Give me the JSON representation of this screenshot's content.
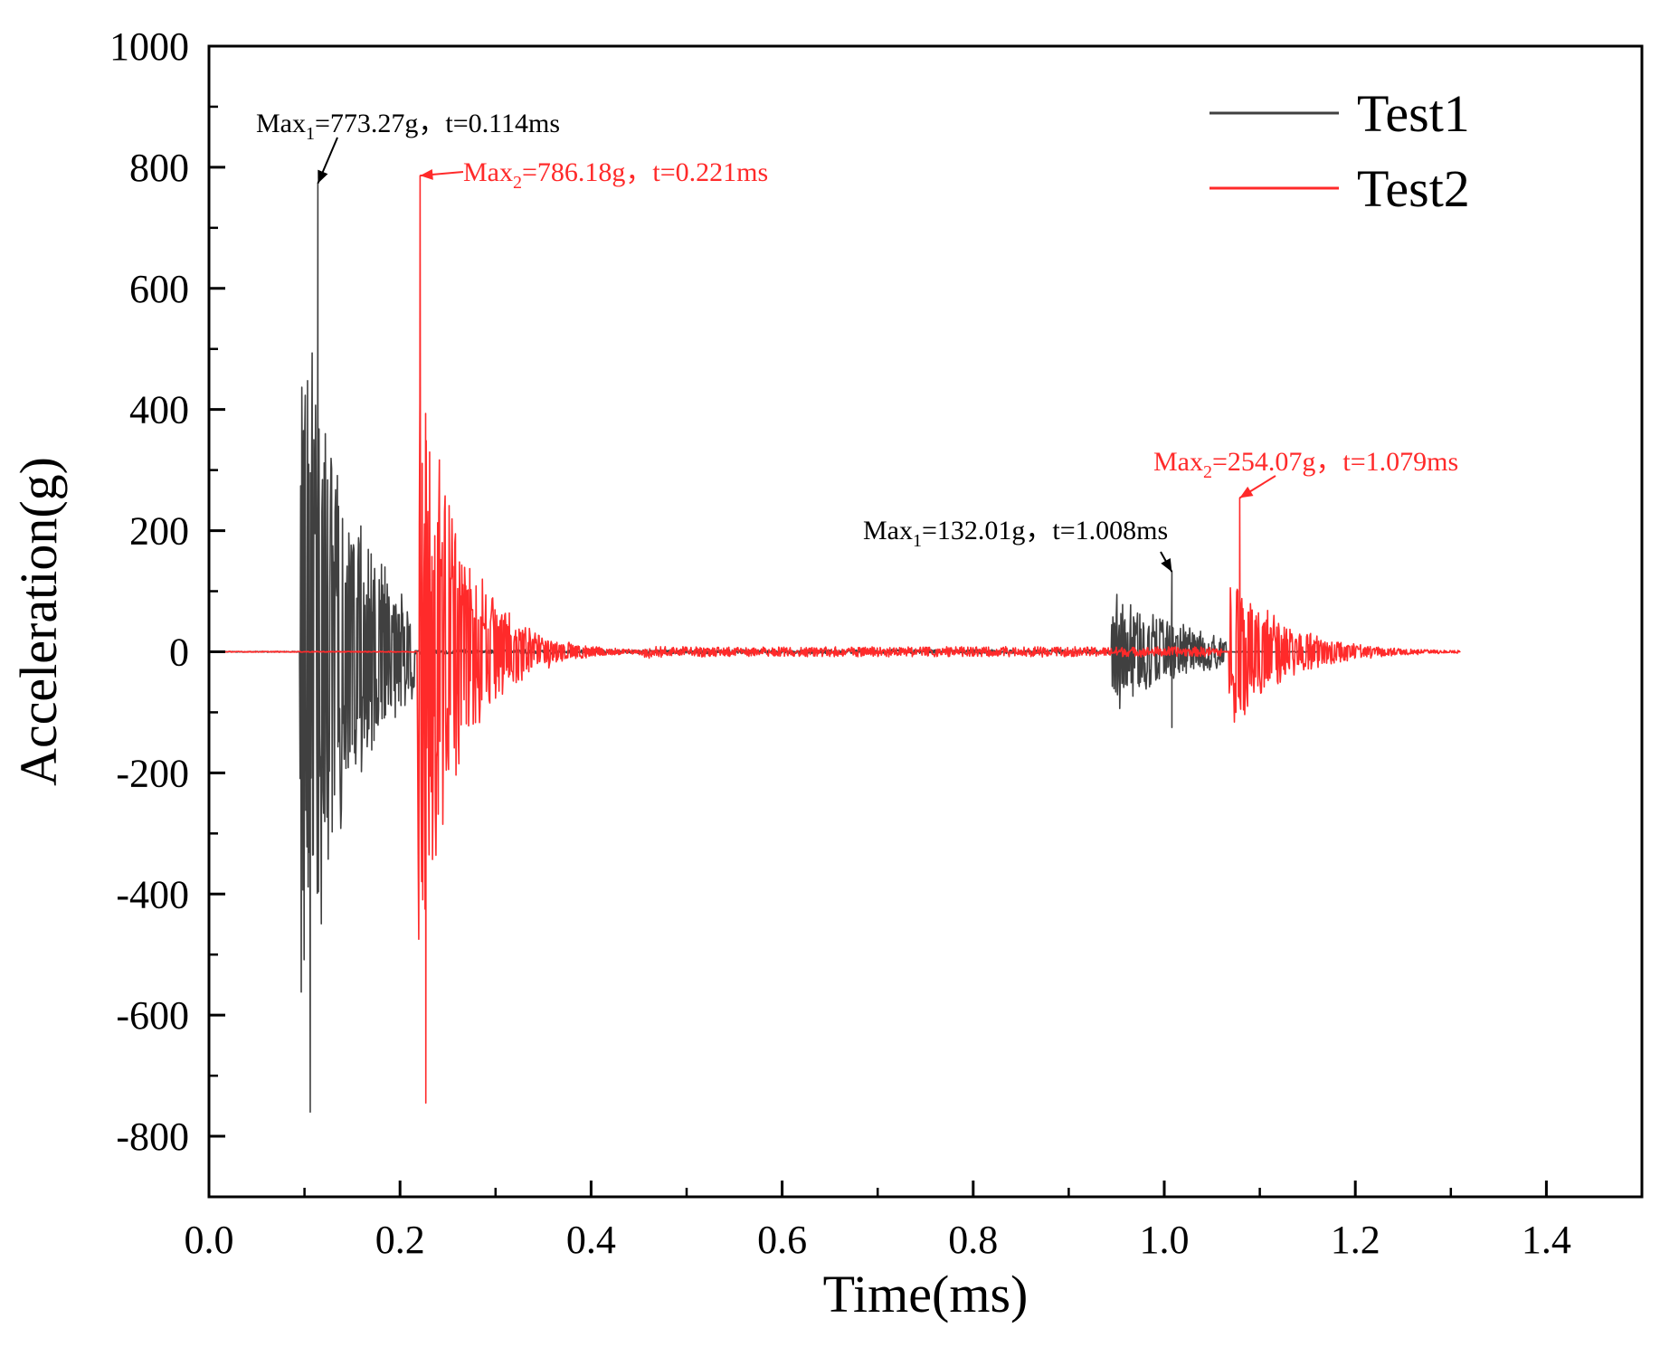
{
  "chart_data": {
    "type": "line",
    "xlabel": "Time(ms)",
    "ylabel": "Acceleration(g)",
    "xlim": [
      0.0,
      1.5
    ],
    "ylim": [
      -900,
      1000
    ],
    "x_ticks": [
      "0.0",
      "0.2",
      "0.4",
      "0.6",
      "0.8",
      "1.0",
      "1.2",
      "1.4"
    ],
    "x_tick_values": [
      0.0,
      0.2,
      0.4,
      0.6,
      0.8,
      1.0,
      1.2,
      1.4
    ],
    "y_ticks": [
      "-800",
      "-600",
      "-400",
      "-200",
      "0",
      "200",
      "400",
      "600",
      "800",
      "1000"
    ],
    "y_tick_values": [
      -800,
      -600,
      -400,
      -200,
      0,
      200,
      400,
      600,
      800,
      1000
    ],
    "legend_position": "top-right",
    "series": [
      {
        "name": "Test1",
        "color": "#404040",
        "x_range": [
          0.0,
          1.16
        ],
        "bursts": [
          {
            "t0": 0.095,
            "t1": 0.215,
            "amp": 720,
            "decay": 18
          },
          {
            "t0": 0.945,
            "t1": 1.065,
            "amp": 110,
            "decay": 12
          }
        ],
        "peaks": [
          {
            "t": 0.114,
            "value": 773.27
          },
          {
            "t": 0.106,
            "value": -760
          },
          {
            "t": 1.008,
            "value": 132.01
          },
          {
            "t": 1.008,
            "value": -125
          }
        ]
      },
      {
        "name": "Test2",
        "color": "#ff2a2a",
        "x_range": [
          0.0,
          1.31
        ],
        "bursts": [
          {
            "t0": 0.218,
            "t1": 0.92,
            "amp": 560,
            "decay": 22
          },
          {
            "t0": 1.068,
            "t1": 1.31,
            "amp": 150,
            "decay": 18
          }
        ],
        "peaks": [
          {
            "t": 0.221,
            "value": 786.18
          },
          {
            "t": 0.227,
            "value": -745
          },
          {
            "t": 1.079,
            "value": 254.07
          },
          {
            "t": 1.075,
            "value": -100
          }
        ]
      }
    ],
    "annotations": [
      {
        "id": "max1-a",
        "prefix": "Max",
        "sub": "1",
        "text": "=773.27g，t=0.114ms",
        "series": "Test1",
        "x": 0.114,
        "y": 773.27,
        "color": "#000000"
      },
      {
        "id": "max2-a",
        "prefix": "Max",
        "sub": "2",
        "text": "=786.18g，t=0.221ms",
        "series": "Test2",
        "x": 0.221,
        "y": 786.18,
        "color": "#ff2a2a"
      },
      {
        "id": "max1-b",
        "prefix": "Max",
        "sub": "1",
        "text": "=132.01g，t=1.008ms",
        "series": "Test1",
        "x": 1.008,
        "y": 132.01,
        "color": "#000000"
      },
      {
        "id": "max2-b",
        "prefix": "Max",
        "sub": "2",
        "text": "=254.07g，t=1.079ms",
        "series": "Test2",
        "x": 1.079,
        "y": 254.07,
        "color": "#ff2a2a"
      }
    ]
  }
}
